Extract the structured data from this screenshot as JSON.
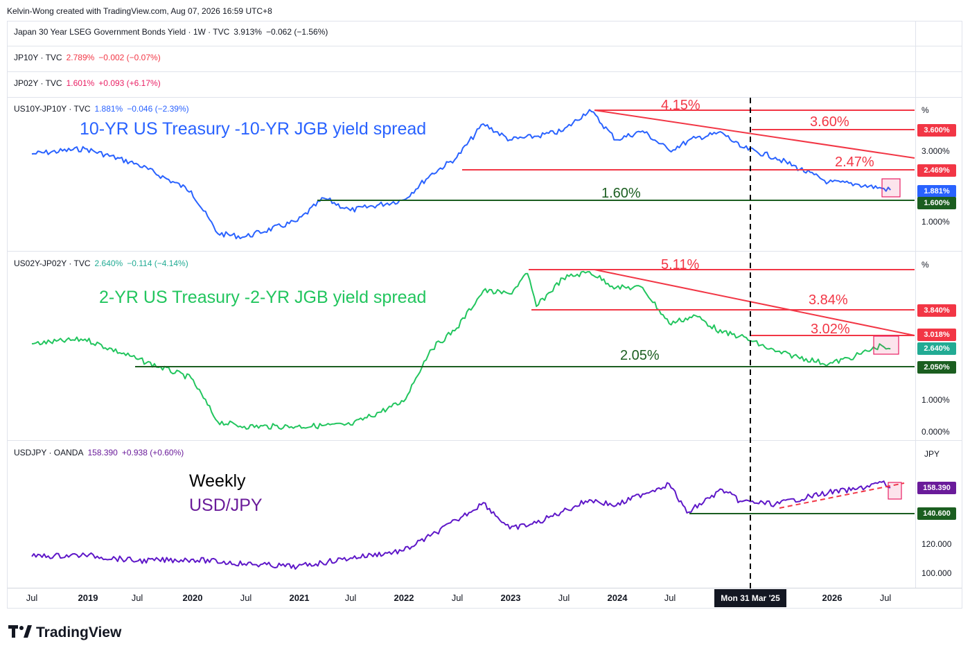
{
  "attribution": "Kelvin-Wong created with TradingView.com, Aug 07, 2026 16:59 UTC+8",
  "legends": {
    "jp30": {
      "name": "Japan 30 Year LSEG Government Bonds Yield · 1W · TVC",
      "last": "3.913%",
      "change": "−0.062 (−1.56%)",
      "color": "#131722",
      "value_color": "#131722"
    },
    "jp10": {
      "name": "JP10Y · TVC",
      "last": "2.789%",
      "change": "−0.002 (−0.07%)",
      "color": "#f23645"
    },
    "jp02": {
      "name": "JP02Y · TVC",
      "last": "1.601%",
      "change": "+0.093 (+6.17%)",
      "color": "#e91e63"
    },
    "spread10": {
      "name": "US10Y-JP10Y · TVC",
      "last": "1.881%",
      "change": "−0.046 (−2.39%)",
      "color": "#2962ff"
    },
    "spread2": {
      "name": "US02Y-JP02Y · TVC",
      "last": "2.640%",
      "change": "−0.114 (−4.14%)",
      "color": "#22ab94"
    },
    "usdjpy": {
      "name": "USDJPY · OANDA",
      "last": "158.390",
      "change": "+0.938 (+0.60%)",
      "color": "#6a1b9a"
    }
  },
  "annotations": {
    "spread10_title": "10-YR US Treasury -10-YR JGB yield spread",
    "spread2_title": "2-YR US Treasury -2-YR JGB yield spread",
    "weekly": "Weekly",
    "usdjpy_title": "USD/JPY",
    "level_415": "4.15%",
    "level_360": "3.60%",
    "level_247": "2.47%",
    "level_160": "1.60%",
    "level_511": "5.11%",
    "level_384": "3.84%",
    "level_302": "3.02%",
    "level_205": "2.05%"
  },
  "time_axis": {
    "ticks": [
      "Jul",
      "2019",
      "Jul",
      "2020",
      "Jul",
      "2021",
      "Jul",
      "2022",
      "Jul",
      "2023",
      "Jul",
      "2024",
      "Jul",
      "2026",
      "Jul"
    ],
    "crosshair_label": "Mon 31 Mar '25"
  },
  "price_axes": {
    "spread10": {
      "unit": "%",
      "ticks": [
        "3.000%",
        "1.000%"
      ],
      "labels": [
        {
          "text": "3.600%",
          "bg": "#f23645"
        },
        {
          "text": "2.469%",
          "bg": "#f23645"
        },
        {
          "text": "1.881%",
          "bg": "#2962ff"
        },
        {
          "text": "1.600%",
          "bg": "#1b5e20"
        }
      ]
    },
    "spread2": {
      "unit": "%",
      "ticks": [
        "1.000%",
        "0.000%"
      ],
      "labels": [
        {
          "text": "3.840%",
          "bg": "#f23645"
        },
        {
          "text": "3.018%",
          "bg": "#f23645"
        },
        {
          "text": "2.640%",
          "bg": "#22ab94"
        },
        {
          "text": "2.050%",
          "bg": "#1b5e20"
        }
      ]
    },
    "usdjpy": {
      "unit": "JPY",
      "ticks": [
        "120.000",
        "100.000"
      ],
      "labels": [
        {
          "text": "158.390",
          "bg": "#6a1b9a"
        },
        {
          "text": "140.600",
          "bg": "#1b5e20"
        }
      ]
    }
  },
  "chart_data": [
    {
      "type": "line",
      "pane": "US10Y-JP10Y spread",
      "title": "10-YR US Treasury -10-YR JGB yield spread",
      "ylabel": "%",
      "x": [
        "2018-07",
        "2019-01",
        "2019-07",
        "2020-01",
        "2020-04",
        "2020-07",
        "2021-01",
        "2021-04",
        "2021-07",
        "2022-01",
        "2022-04",
        "2022-07",
        "2022-10",
        "2023-01",
        "2023-04",
        "2023-07",
        "2023-10",
        "2024-01",
        "2024-04",
        "2024-07",
        "2024-10",
        "2025-01",
        "2025-03",
        "2025-07",
        "2026-01",
        "2026-04",
        "2026-07",
        "2026-08"
      ],
      "series": [
        {
          "values": [
            2.9,
            3.05,
            2.6,
            1.85,
            0.65,
            0.55,
            1.0,
            1.65,
            1.3,
            1.6,
            2.3,
            2.8,
            3.75,
            3.3,
            3.4,
            3.55,
            4.15,
            3.3,
            3.55,
            3.0,
            3.35,
            3.5,
            3.1,
            2.8,
            2.1,
            2.05,
            1.93,
            1.881
          ]
        }
      ],
      "levels": [
        4.15,
        3.6,
        2.47,
        1.6
      ]
    },
    {
      "type": "line",
      "pane": "US02Y-JP02Y spread",
      "title": "2-YR US Treasury -2-YR JGB yield spread",
      "ylabel": "%",
      "x": [
        "2018-07",
        "2019-01",
        "2019-07",
        "2020-01",
        "2020-04",
        "2020-07",
        "2021-01",
        "2021-07",
        "2022-01",
        "2022-04",
        "2022-07",
        "2022-10",
        "2023-01",
        "2023-03",
        "2023-04",
        "2023-07",
        "2023-10",
        "2024-01",
        "2024-04",
        "2024-07",
        "2024-10",
        "2025-01",
        "2025-03",
        "2025-07",
        "2026-01",
        "2026-04",
        "2026-07",
        "2026-08"
      ],
      "series": [
        {
          "values": [
            2.8,
            2.95,
            2.3,
            1.7,
            0.3,
            0.15,
            0.15,
            0.2,
            0.95,
            2.6,
            3.3,
            4.5,
            4.4,
            5.05,
            4.0,
            4.9,
            5.11,
            4.6,
            4.6,
            3.45,
            3.7,
            3.15,
            3.05,
            2.55,
            2.15,
            2.4,
            2.75,
            2.64
          ]
        }
      ],
      "levels": [
        5.11,
        3.84,
        3.02,
        2.05
      ]
    },
    {
      "type": "line",
      "pane": "USD/JPY",
      "title": "USD/JPY",
      "ylabel": "JPY",
      "x": [
        "2018-07",
        "2019-01",
        "2019-07",
        "2020-01",
        "2020-07",
        "2021-01",
        "2021-07",
        "2022-01",
        "2022-04",
        "2022-07",
        "2022-10",
        "2023-01",
        "2023-04",
        "2023-07",
        "2023-10",
        "2024-01",
        "2024-04",
        "2024-07",
        "2024-09",
        "2025-01",
        "2025-03",
        "2025-07",
        "2026-01",
        "2026-04",
        "2026-07",
        "2026-08"
      ],
      "series": [
        {
          "values": [
            111,
            112,
            108,
            109,
            106,
            104,
            110,
            115,
            125,
            136,
            148,
            130,
            134,
            142,
            150,
            146,
            154,
            161,
            141,
            157,
            149,
            147,
            155,
            157,
            162,
            158.39
          ]
        }
      ],
      "levels": [
        140.6
      ]
    }
  ]
}
